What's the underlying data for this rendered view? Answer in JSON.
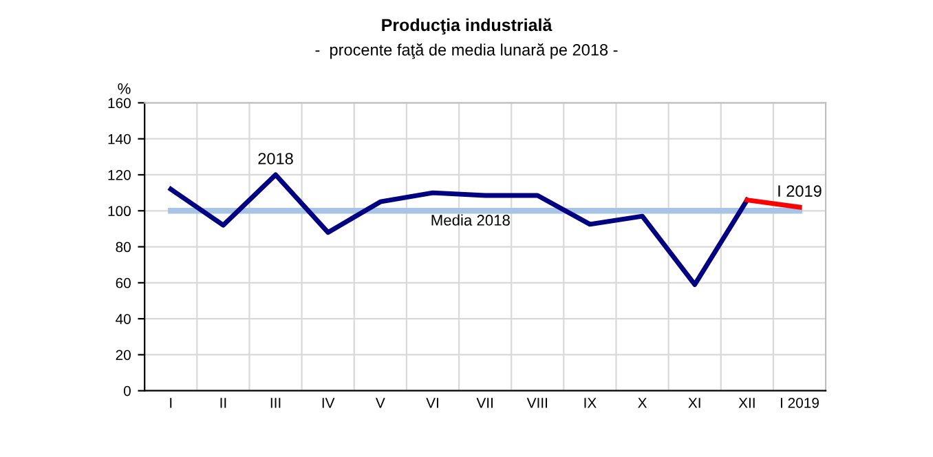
{
  "chart_data": {
    "type": "line",
    "title": "Producţia industrială",
    "subtitle": "-  procente faţă de media lunară pe 2018 -",
    "ylabel": "%",
    "categories": [
      "I",
      "II",
      "III",
      "IV",
      "V",
      "VI",
      "VII",
      "VIII",
      "IX",
      "X",
      "XI",
      "XII",
      "I 2019"
    ],
    "series": [
      {
        "name": "2018",
        "color": "#000080",
        "values": [
          112,
          92,
          120,
          88,
          105,
          110,
          108.5,
          108.5,
          92.5,
          97,
          59,
          106,
          null
        ]
      },
      {
        "name": "I 2019",
        "color": "#ff0000",
        "values": [
          null,
          null,
          null,
          null,
          null,
          null,
          null,
          null,
          null,
          null,
          null,
          106,
          102
        ]
      }
    ],
    "ylim": [
      0,
      160
    ],
    "yticks": [
      0,
      20,
      40,
      60,
      80,
      100,
      120,
      140,
      160
    ],
    "ref_lines": [
      {
        "axis": "y",
        "value": 100,
        "label": "Media 2018",
        "color": "#a6c4e6"
      }
    ],
    "grid": true,
    "legend": false,
    "marker": "none",
    "line_style": "solid"
  }
}
